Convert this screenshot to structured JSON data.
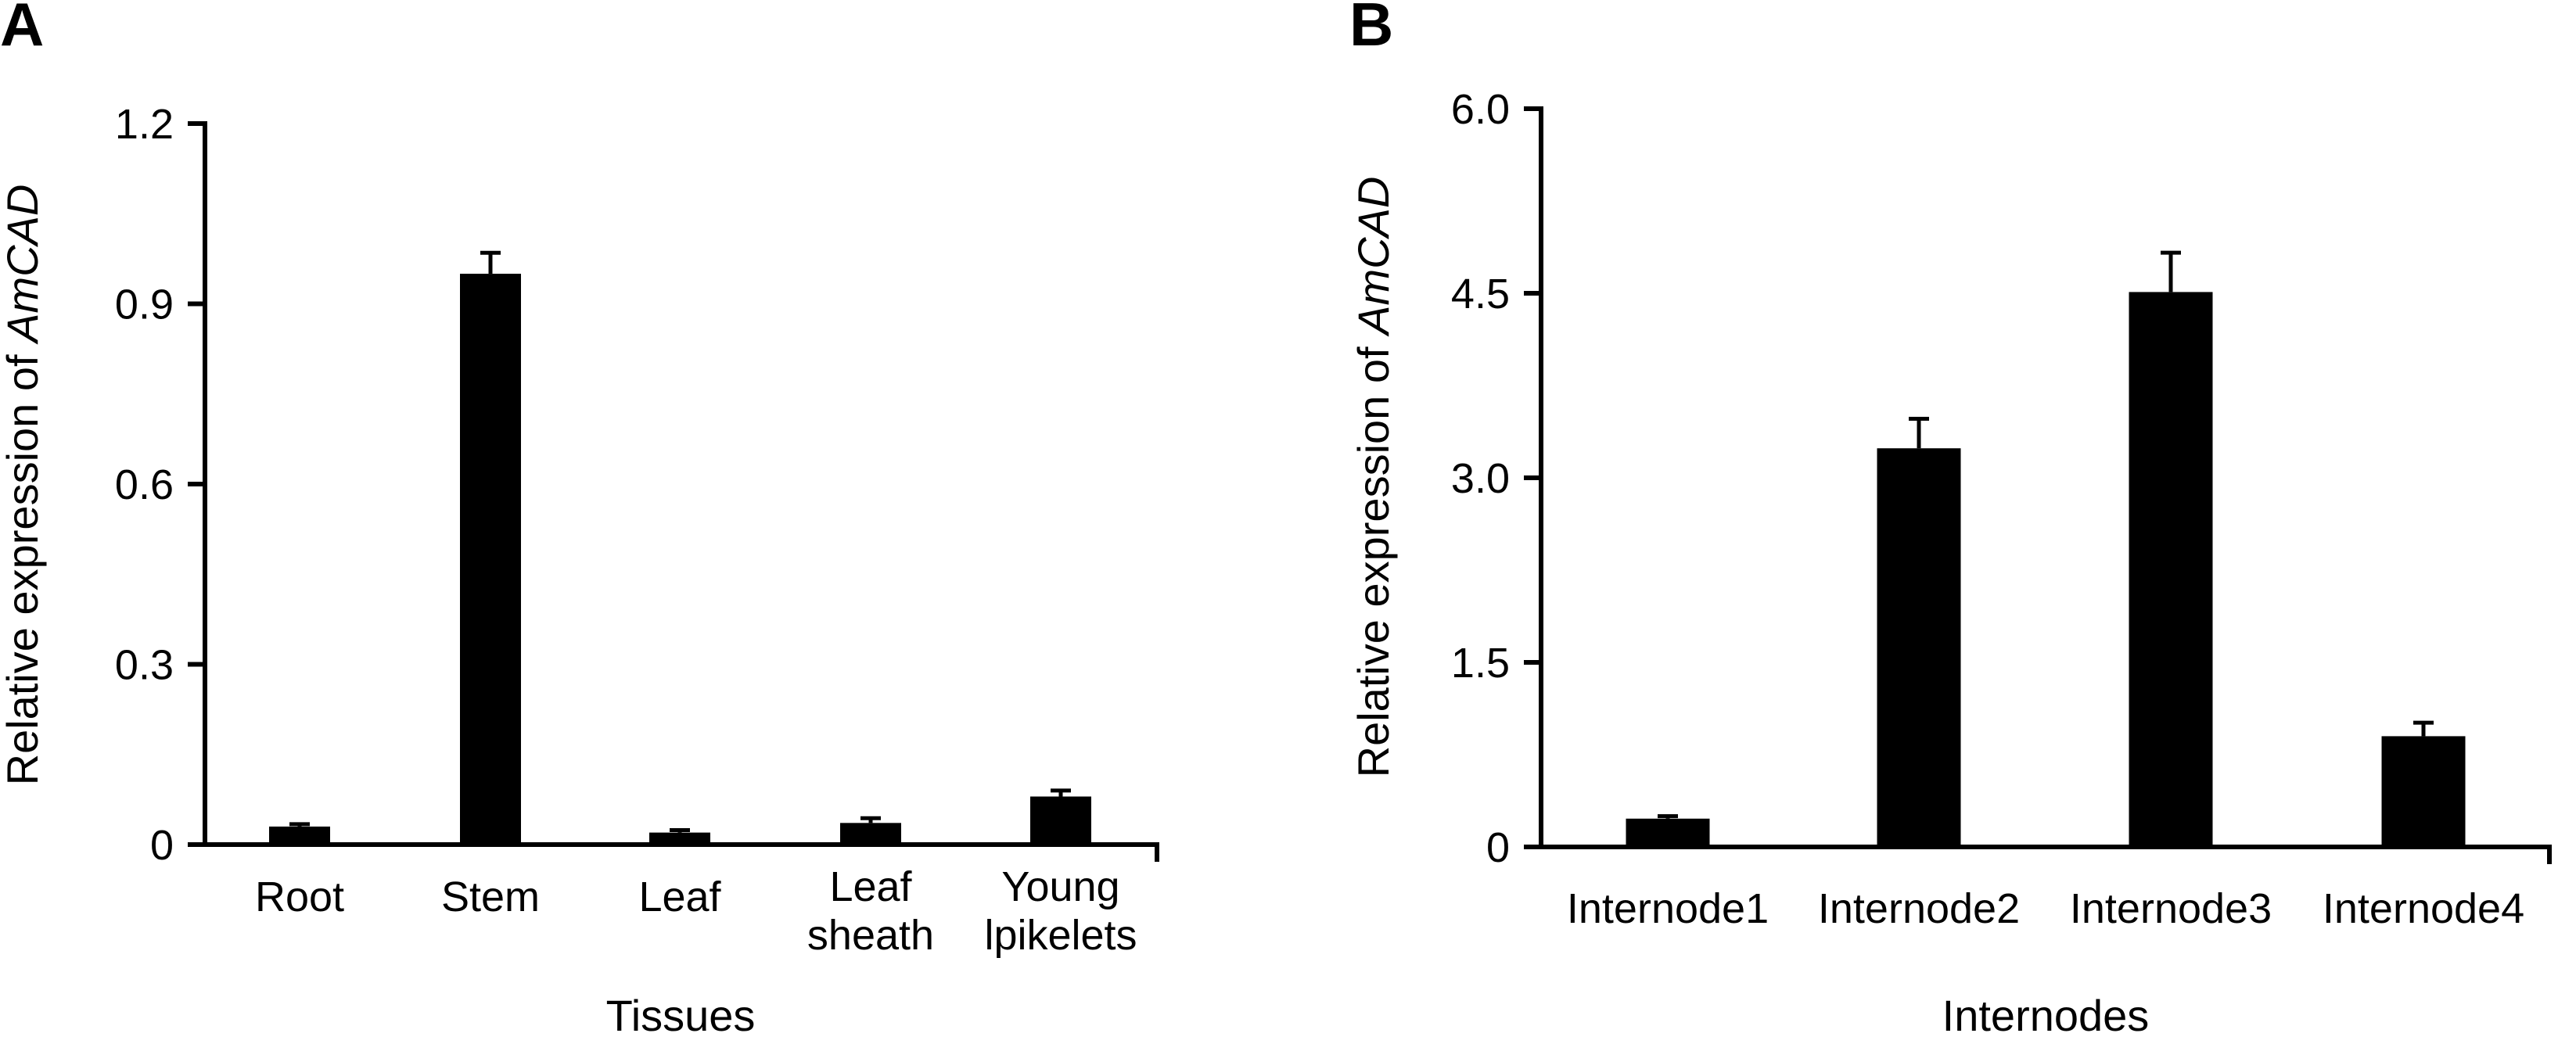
{
  "figure": {
    "bar_color": "#000000",
    "background": "#ffffff"
  },
  "chart_data": [
    {
      "panel": "A",
      "type": "bar",
      "title": "",
      "xlabel": "Tissues",
      "ylabel_prefix": "Relative expression of ",
      "ylabel_gene": "AmCAD",
      "ylim": [
        0,
        1.2
      ],
      "yticks": [
        0,
        0.3,
        0.6,
        0.9,
        1.2
      ],
      "ytick_labels": [
        "0",
        "0.3",
        "0.6",
        "0.9",
        "1.2"
      ],
      "categories": [
        [
          "Root"
        ],
        [
          "Stem"
        ],
        [
          "Leaf"
        ],
        [
          "Leaf",
          "sheath"
        ],
        [
          "Young",
          "lpikelets"
        ]
      ],
      "values": [
        0.03,
        0.95,
        0.02,
        0.036,
        0.08
      ],
      "errors": [
        0.004,
        0.035,
        0.004,
        0.008,
        0.01
      ]
    },
    {
      "panel": "B",
      "type": "bar",
      "title": "",
      "xlabel": "Internodes",
      "ylabel_prefix": "Relative expression of ",
      "ylabel_gene": "AmCAD",
      "ylim": [
        0,
        6.0
      ],
      "yticks": [
        0,
        1.5,
        3.0,
        4.5,
        6.0
      ],
      "ytick_labels": [
        "0",
        "1.5",
        "3.0",
        "4.5",
        "6.0"
      ],
      "categories": [
        [
          "Internode1"
        ],
        [
          "Internode2"
        ],
        [
          "Internode3"
        ],
        [
          "Internode4"
        ]
      ],
      "values": [
        0.23,
        3.24,
        4.51,
        0.9
      ],
      "errors": [
        0.02,
        0.24,
        0.32,
        0.11
      ]
    }
  ]
}
